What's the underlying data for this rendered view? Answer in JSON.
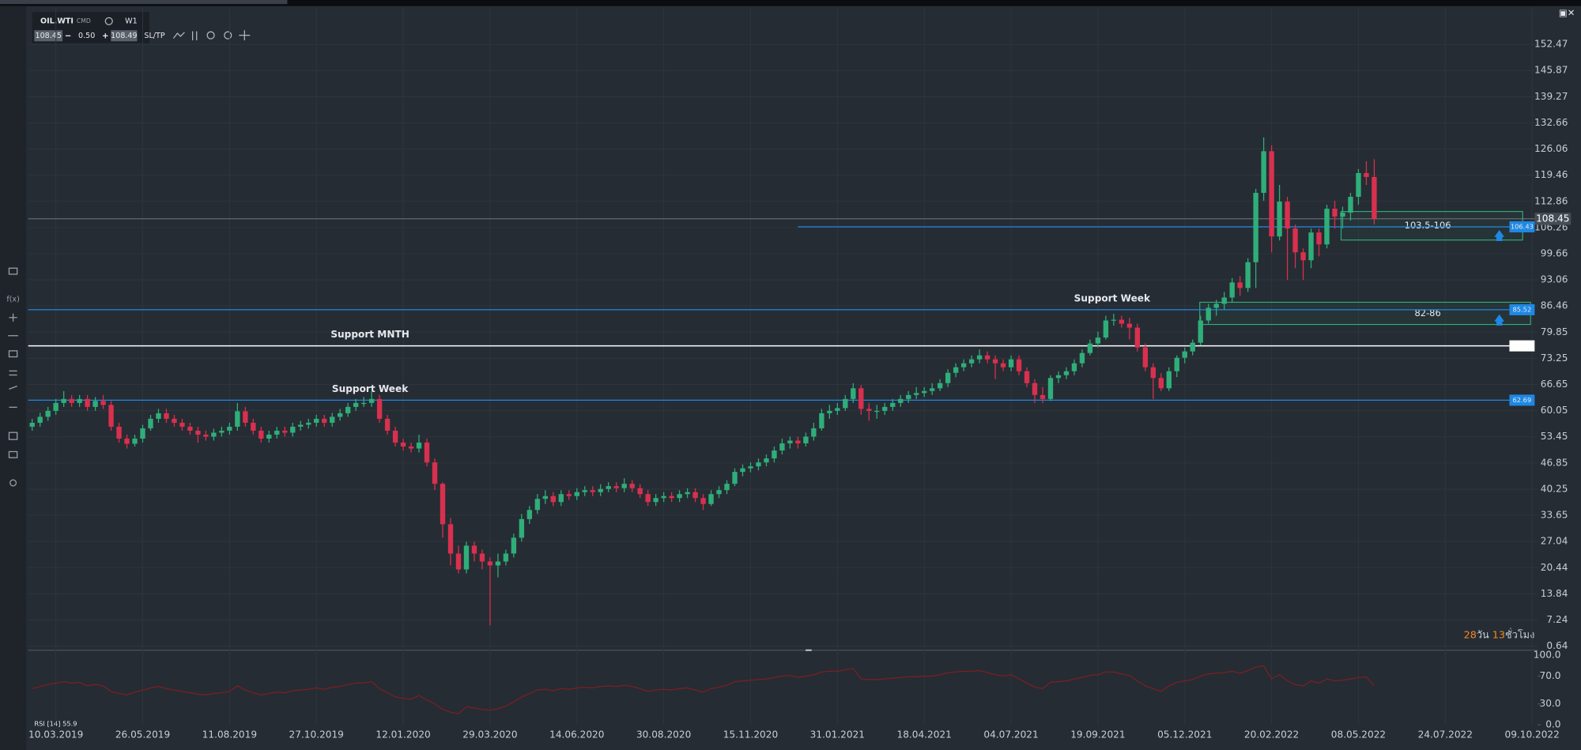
{
  "chart_data": {
    "type": "candlestick",
    "symbol": "OIL.WTI",
    "market": "CMD",
    "timeframe": "W1",
    "bid": "108.45",
    "spread": "0.50",
    "ask": "108.49",
    "sltp": "SL/TP",
    "up_color": "#2fae7a",
    "down_color": "#d9304f",
    "xlim": [
      -0.5,
      190.7
    ],
    "xticks": [
      {
        "value": 3,
        "label": "10.03.2019"
      },
      {
        "value": 14,
        "label": "26.05.2019"
      },
      {
        "value": 25,
        "label": "11.08.2019"
      },
      {
        "value": 36,
        "label": "27.10.2019"
      },
      {
        "value": 47,
        "label": "12.01.2020"
      },
      {
        "value": 58,
        "label": "29.03.2020"
      },
      {
        "value": 69,
        "label": "14.06.2020"
      },
      {
        "value": 80,
        "label": "30.08.2020"
      },
      {
        "value": 91,
        "label": "15.11.2020"
      },
      {
        "value": 102,
        "label": "31.01.2021"
      },
      {
        "value": 113,
        "label": "18.04.2021"
      },
      {
        "value": 124,
        "label": "04.07.2021"
      },
      {
        "value": 135,
        "label": "19.09.2021"
      },
      {
        "value": 146,
        "label": "05.12.2021"
      },
      {
        "value": 157,
        "label": "20.02.2022"
      },
      {
        "value": 168,
        "label": "08.05.2022"
      },
      {
        "value": 179,
        "label": "24.07.2022"
      },
      {
        "value": 190,
        "label": "09.10.2022"
      }
    ],
    "ylim": [
      -0.38,
      161.62
    ],
    "yticks": [
      152.47,
      145.87,
      139.27,
      132.66,
      126.06,
      119.46,
      112.86,
      106.26,
      99.66,
      93.06,
      86.46,
      79.85,
      73.25,
      66.65,
      60.05,
      53.45,
      46.85,
      40.25,
      33.65,
      27.04,
      20.44,
      13.84,
      7.24,
      0.64
    ],
    "grid": true,
    "ohlc": [
      [
        56,
        58,
        55,
        57
      ],
      [
        57,
        59.5,
        56,
        58.5
      ],
      [
        58.5,
        61,
        57.5,
        60
      ],
      [
        60,
        63,
        59,
        62
      ],
      [
        62,
        65,
        61,
        63
      ],
      [
        63,
        64,
        61,
        62
      ],
      [
        62,
        64,
        61,
        63
      ],
      [
        63,
        64,
        60,
        61
      ],
      [
        61,
        63.5,
        60,
        62.5
      ],
      [
        62.5,
        64,
        60.5,
        61.5
      ],
      [
        61.5,
        62.5,
        55,
        56
      ],
      [
        56,
        57,
        52,
        53
      ],
      [
        53,
        54,
        50.5,
        51.7
      ],
      [
        51.7,
        54,
        51,
        53
      ],
      [
        53,
        56.5,
        52,
        55.6
      ],
      [
        55.6,
        59,
        55,
        58
      ],
      [
        58,
        60.5,
        57,
        59.4
      ],
      [
        59.4,
        60.5,
        57,
        58
      ],
      [
        58,
        59,
        56,
        57
      ],
      [
        57,
        58,
        55,
        56
      ],
      [
        56,
        57,
        54,
        55
      ],
      [
        55,
        56,
        52,
        54
      ],
      [
        54,
        55,
        52.5,
        53.5
      ],
      [
        53.5,
        55.5,
        52.5,
        54.5
      ],
      [
        54.5,
        56,
        53.5,
        55
      ],
      [
        55,
        57,
        54,
        56
      ],
      [
        56,
        62,
        55,
        59.9
      ],
      [
        59.9,
        61,
        56,
        57
      ],
      [
        57,
        58,
        54,
        55
      ],
      [
        55,
        56,
        52,
        53
      ],
      [
        53,
        55,
        52,
        54
      ],
      [
        54,
        56,
        53,
        55
      ],
      [
        55,
        56,
        53.5,
        54.5
      ],
      [
        54.5,
        57,
        53.5,
        56
      ],
      [
        56,
        57.5,
        55,
        56.5
      ],
      [
        56.5,
        58,
        55.5,
        57
      ],
      [
        57,
        59,
        56,
        58
      ],
      [
        58,
        59,
        56,
        57
      ],
      [
        57,
        59.5,
        56,
        58.5
      ],
      [
        58.5,
        60.5,
        57.5,
        59.4
      ],
      [
        59.4,
        62,
        58.5,
        61
      ],
      [
        61,
        63,
        60,
        62
      ],
      [
        62,
        63.5,
        61,
        62
      ],
      [
        62,
        65,
        61,
        63
      ],
      [
        63,
        64,
        57,
        58
      ],
      [
        58,
        59,
        54,
        55
      ],
      [
        55,
        56,
        51,
        52
      ],
      [
        52,
        53,
        50,
        51
      ],
      [
        51,
        52,
        49.5,
        50.5
      ],
      [
        50.5,
        54,
        49.5,
        52
      ],
      [
        52,
        53,
        46,
        47
      ],
      [
        47,
        48,
        40,
        41.6
      ],
      [
        41.6,
        42,
        28,
        31.4
      ],
      [
        31.4,
        33,
        21,
        24
      ],
      [
        24,
        26,
        19,
        20
      ],
      [
        20,
        27,
        19,
        26
      ],
      [
        26,
        27,
        22,
        24
      ],
      [
        24,
        25,
        20,
        22
      ],
      [
        22,
        23,
        5.9,
        21
      ],
      [
        21,
        24,
        18,
        22
      ],
      [
        22,
        25,
        21,
        24
      ],
      [
        24,
        29,
        23,
        28
      ],
      [
        28,
        34,
        27,
        32.7
      ],
      [
        32.7,
        36,
        31.5,
        35
      ],
      [
        35,
        39,
        34,
        37.8
      ],
      [
        37.8,
        40,
        36.5,
        38.5
      ],
      [
        38.5,
        39.5,
        36,
        37
      ],
      [
        37,
        40,
        36,
        39
      ],
      [
        39,
        40,
        37.5,
        38.5
      ],
      [
        38.5,
        40.5,
        37.5,
        39.5
      ],
      [
        39.5,
        41,
        38.5,
        40
      ],
      [
        40,
        41,
        38.5,
        39.5
      ],
      [
        39.5,
        41.5,
        38.5,
        40.3
      ],
      [
        40.3,
        42,
        39.5,
        41
      ],
      [
        41,
        42,
        39.5,
        40.5
      ],
      [
        40.5,
        43,
        39.5,
        41.6
      ],
      [
        41.6,
        42.5,
        39.5,
        40.5
      ],
      [
        40.5,
        41.5,
        38,
        39
      ],
      [
        39,
        40,
        36,
        37
      ],
      [
        37,
        39,
        36,
        38
      ],
      [
        38,
        39.5,
        37,
        38.5
      ],
      [
        38.5,
        39.5,
        37,
        38
      ],
      [
        38,
        40,
        37,
        39
      ],
      [
        39,
        40.5,
        38,
        39.5
      ],
      [
        39.5,
        40.5,
        37,
        38
      ],
      [
        38,
        39,
        35,
        36.5
      ],
      [
        36.5,
        40,
        36,
        39
      ],
      [
        39,
        41,
        38,
        40
      ],
      [
        40,
        42.5,
        39,
        41.6
      ],
      [
        41.6,
        45.5,
        41,
        44.6
      ],
      [
        44.6,
        46.5,
        43.5,
        45.5
      ],
      [
        45.5,
        47,
        44.5,
        46
      ],
      [
        46,
        48,
        45,
        47
      ],
      [
        47,
        49,
        46,
        48
      ],
      [
        48,
        51,
        47,
        50
      ],
      [
        50,
        53,
        49,
        51.8
      ],
      [
        51.8,
        53.5,
        50.5,
        52.5
      ],
      [
        52.5,
        53.5,
        50.5,
        51.8
      ],
      [
        51.8,
        54.5,
        51,
        53.5
      ],
      [
        53.5,
        57,
        52.5,
        55.6
      ],
      [
        55.6,
        60.5,
        55,
        59.4
      ],
      [
        59.4,
        61.5,
        58,
        60
      ],
      [
        60,
        62,
        59,
        60.7
      ],
      [
        60.7,
        64,
        60,
        63
      ],
      [
        63,
        67,
        62,
        65.7
      ],
      [
        65.7,
        66.5,
        59,
        60.5
      ],
      [
        60.5,
        62,
        57.5,
        60
      ],
      [
        60,
        61.5,
        58,
        60
      ],
      [
        60,
        62,
        59,
        61
      ],
      [
        61,
        63,
        60,
        62
      ],
      [
        62,
        64,
        61,
        63
      ],
      [
        63,
        65,
        62,
        64
      ],
      [
        64,
        66,
        63,
        64.5
      ],
      [
        64.5,
        66,
        63.5,
        65
      ],
      [
        65,
        67,
        64,
        65.7
      ],
      [
        65.7,
        68,
        65,
        67
      ],
      [
        67,
        70.5,
        66,
        69.6
      ],
      [
        69.6,
        72,
        68.5,
        71
      ],
      [
        71,
        73,
        70,
        72
      ],
      [
        72,
        74,
        71,
        73
      ],
      [
        73,
        75.5,
        72,
        74
      ],
      [
        74,
        75,
        72,
        73
      ],
      [
        73,
        74,
        68,
        72
      ],
      [
        72,
        73,
        70,
        71
      ],
      [
        71,
        74,
        70,
        73
      ],
      [
        73,
        74,
        69,
        70
      ],
      [
        70,
        71,
        66,
        67
      ],
      [
        67,
        68,
        62,
        64
      ],
      [
        64,
        66,
        62,
        63
      ],
      [
        63,
        69,
        62.5,
        68.3
      ],
      [
        68.3,
        70,
        67,
        69
      ],
      [
        69,
        71,
        68,
        70
      ],
      [
        70,
        73,
        69,
        72
      ],
      [
        72,
        75.5,
        71,
        74.6
      ],
      [
        74.6,
        78,
        74,
        77
      ],
      [
        77,
        80,
        76,
        78.5
      ],
      [
        78.5,
        84,
        78,
        82.8
      ],
      [
        82.8,
        84.5,
        81.5,
        83
      ],
      [
        83,
        84,
        81,
        82
      ],
      [
        82,
        83.5,
        78,
        81
      ],
      [
        81,
        82,
        75,
        76
      ],
      [
        76,
        77,
        70,
        71
      ],
      [
        71,
        72,
        63,
        68.3
      ],
      [
        68.3,
        69.5,
        65,
        65.7
      ],
      [
        65.7,
        71,
        65,
        70
      ],
      [
        70,
        74,
        68.5,
        73.4
      ],
      [
        73.4,
        76,
        72,
        75
      ],
      [
        75,
        78,
        74,
        77.2
      ],
      [
        77.2,
        84,
        76.5,
        82.8
      ],
      [
        82.8,
        87,
        82,
        86
      ],
      [
        86,
        88,
        84,
        87
      ],
      [
        87,
        90,
        85.5,
        88.6
      ],
      [
        88.6,
        93.5,
        87.5,
        92.4
      ],
      [
        92.4,
        94,
        89,
        91
      ],
      [
        91,
        98.5,
        90,
        97.5
      ],
      [
        97.5,
        116,
        91,
        115
      ],
      [
        115,
        129,
        113,
        125.5
      ],
      [
        125.5,
        127,
        100,
        104
      ],
      [
        104,
        117,
        103,
        112.8
      ],
      [
        112.8,
        114,
        93,
        106
      ],
      [
        106,
        107,
        96,
        100
      ],
      [
        100,
        101,
        93,
        98
      ],
      [
        98,
        106,
        96,
        105
      ],
      [
        105,
        106,
        99,
        102
      ],
      [
        102,
        112,
        101,
        111
      ],
      [
        111,
        113,
        106,
        109
      ],
      [
        109,
        111.5,
        106,
        110
      ],
      [
        110,
        115,
        108,
        114
      ],
      [
        114,
        121,
        112,
        120
      ],
      [
        120,
        123,
        117,
        119
      ],
      [
        119,
        123.5,
        107,
        108.45
      ]
    ],
    "current_price": {
      "value": 108.45,
      "label": "108.45",
      "color": "#8a9099"
    },
    "price_lines": [
      {
        "value": 106.43,
        "label": "106.43",
        "color": "#1e88e5",
        "x_start": 97
      },
      {
        "value": 85.52,
        "label": "85.52",
        "color": "#1e88e5",
        "note": "Support Week"
      },
      {
        "value": 76.4,
        "color": "#ffffff",
        "note": "Support MNTH"
      },
      {
        "value": 62.69,
        "label": "62.69",
        "color": "#1e88e5",
        "note": "Support Week"
      }
    ],
    "zones": [
      {
        "label": "103.5-106",
        "range": [
          103.1,
          110.3
        ],
        "x_range": [
          165.8,
          188.8
        ],
        "color": "#2fae7a"
      },
      {
        "label": "82-86",
        "range": [
          81.8,
          87.4
        ],
        "x_range": [
          147.9,
          189.8
        ],
        "color": "#2fae7a"
      }
    ],
    "countdown": [
      "28",
      "วัน ",
      "13",
      "ชั่วโมง"
    ],
    "rsi_label": "RSI [14] 55.9",
    "rsi_color": "#7a1f24",
    "rsi_ylim": [
      0,
      100
    ],
    "rsi_yticks": [
      {
        "value": 100,
        "label": "100.0"
      },
      {
        "value": 70,
        "label": "70.0"
      },
      {
        "value": 30,
        "label": "30.0"
      },
      {
        "value": 0,
        "label": "0.0"
      }
    ],
    "rsi": [
      52,
      55,
      58,
      60,
      62,
      60,
      61,
      56,
      58,
      56,
      48,
      45,
      43,
      47,
      50,
      53,
      55,
      52,
      50,
      48,
      46,
      44,
      43,
      45,
      46,
      48,
      56,
      50,
      46,
      43,
      45,
      47,
      46,
      49,
      50,
      51,
      53,
      51,
      54,
      55,
      58,
      60,
      60,
      62,
      52,
      46,
      40,
      38,
      37,
      42,
      36,
      30,
      22,
      18,
      16,
      26,
      24,
      22,
      21,
      23,
      27,
      33,
      40,
      45,
      50,
      51,
      49,
      52,
      51,
      53,
      54,
      53,
      55,
      56,
      55,
      57,
      55,
      52,
      48,
      50,
      51,
      50,
      52,
      53,
      50,
      47,
      52,
      54,
      57,
      62,
      63,
      64,
      65,
      66,
      68,
      70,
      71,
      68,
      70,
      72,
      76,
      77,
      77,
      79,
      81,
      66,
      65,
      65,
      66,
      67,
      68,
      69,
      69,
      70,
      70,
      72,
      75,
      76,
      77,
      77,
      78,
      75,
      72,
      70,
      72,
      66,
      60,
      54,
      52,
      61,
      62,
      63,
      66,
      68,
      71,
      72,
      76,
      76,
      73,
      71,
      63,
      56,
      52,
      48,
      56,
      61,
      63,
      65,
      70,
      73,
      74,
      75,
      77,
      74,
      78,
      83,
      85,
      66,
      72,
      63,
      58,
      56,
      63,
      60,
      66,
      63,
      64,
      66,
      68,
      69,
      55.9
    ]
  }
}
